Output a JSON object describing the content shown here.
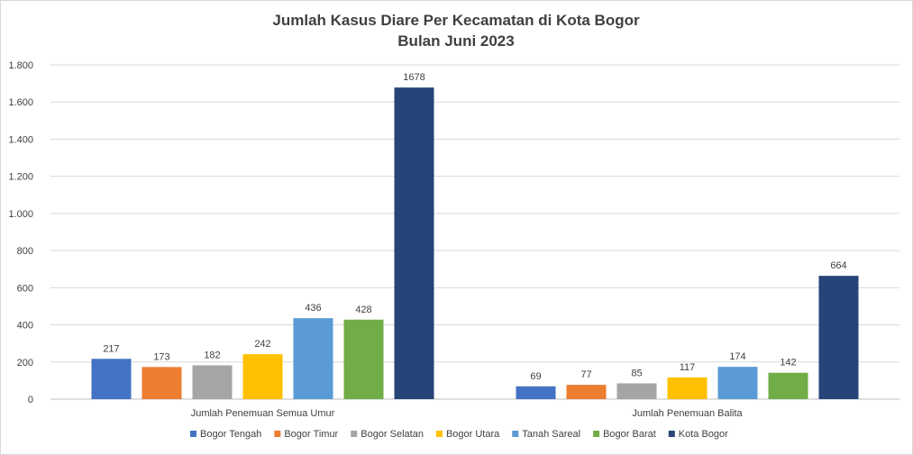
{
  "chart_data": {
    "type": "bar",
    "title": "Jumlah Kasus Diare Per Kecamatan di Kota Bogor",
    "subtitle": "Bulan Juni 2023",
    "xlabel": "",
    "ylabel": "",
    "ylim": [
      0,
      1800
    ],
    "yticks": [
      0,
      200,
      400,
      600,
      800,
      1000,
      1200,
      1400,
      1600,
      1800
    ],
    "ytick_labels": [
      "0",
      "200",
      "400",
      "600",
      "800",
      "1.000",
      "1.200",
      "1.400",
      "1.600",
      "1.800"
    ],
    "grid": true,
    "legend_position": "bottom",
    "categories": [
      "Jumlah Penemuan Semua Umur",
      "Jumlah Penemuan Balita"
    ],
    "series": [
      {
        "name": "Bogor Tengah",
        "color": "#4472c4",
        "values": [
          217,
          69
        ]
      },
      {
        "name": "Bogor Timur",
        "color": "#ed7d31",
        "values": [
          173,
          77
        ]
      },
      {
        "name": "Bogor Selatan",
        "color": "#a5a5a5",
        "values": [
          182,
          85
        ]
      },
      {
        "name": "Bogor Utara",
        "color": "#ffc000",
        "values": [
          242,
          117
        ]
      },
      {
        "name": "Tanah Sareal",
        "color": "#5b9bd5",
        "values": [
          436,
          174
        ]
      },
      {
        "name": "Bogor Barat",
        "color": "#70ad47",
        "values": [
          428,
          142
        ]
      },
      {
        "name": "Kota Bogor",
        "color": "#264478",
        "values": [
          1678,
          664
        ]
      }
    ]
  }
}
